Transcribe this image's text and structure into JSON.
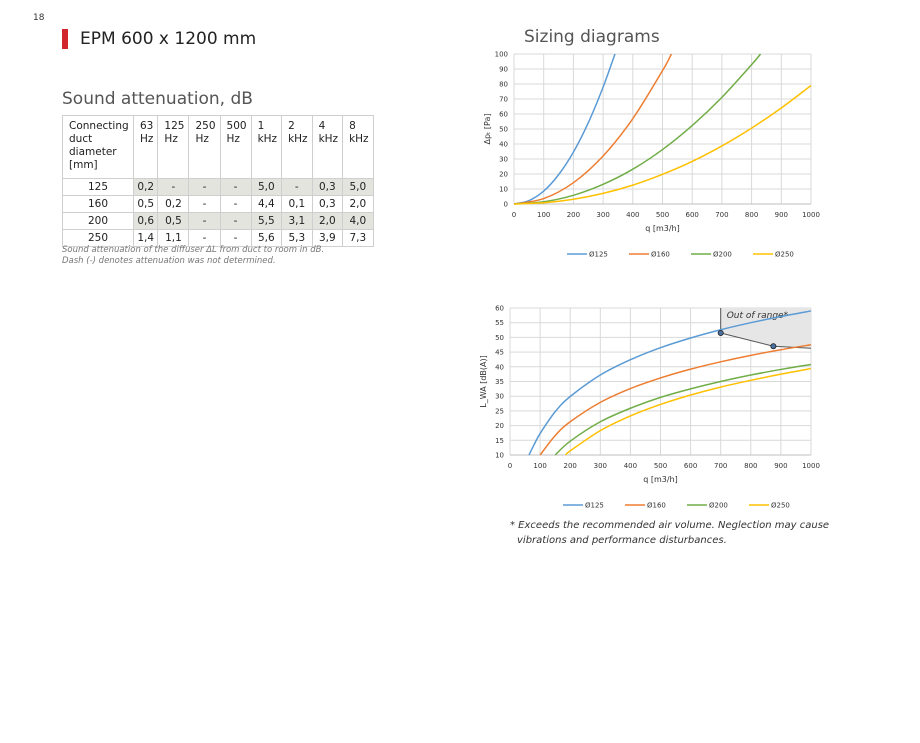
{
  "page": {
    "number": "18",
    "title": "EPM 600 x 1200 mm",
    "accent": "#d2262d"
  },
  "attenuation": {
    "title": "Sound attenuation, dB",
    "header": {
      "first": [
        "Connecting",
        "duct",
        "diameter",
        "[mm]"
      ],
      "freqs": [
        [
          "63",
          "Hz"
        ],
        [
          "125",
          "Hz"
        ],
        [
          "250",
          "Hz"
        ],
        [
          "500",
          "Hz"
        ],
        [
          "1",
          "kHz"
        ],
        [
          "2",
          "kHz"
        ],
        [
          "4",
          "kHz"
        ],
        [
          "8",
          "kHz"
        ]
      ]
    },
    "rows": [
      {
        "diameter": "125",
        "values": [
          "0,2",
          "-",
          "-",
          "-",
          "5,0",
          "-",
          "0,3",
          "5,0"
        ],
        "shaded": true
      },
      {
        "diameter": "160",
        "values": [
          "0,5",
          "0,2",
          "-",
          "-",
          "4,4",
          "0,1",
          "0,3",
          "2,0"
        ],
        "shaded": false
      },
      {
        "diameter": "200",
        "values": [
          "0,6",
          "0,5",
          "-",
          "-",
          "5,5",
          "3,1",
          "2,0",
          "4,0"
        ],
        "shaded": true
      },
      {
        "diameter": "250",
        "values": [
          "1,4",
          "1,1",
          "-",
          "-",
          "5,6",
          "5,3",
          "3,9",
          "7,3"
        ],
        "shaded": false
      }
    ],
    "note": [
      "Sound attenuation of the diffuser ΔL from duct to room in dB.",
      "Dash (-) denotes attenuation was not determined."
    ]
  },
  "sizing": {
    "title": "Sizing diagrams"
  },
  "footnote": [
    "* Exceeds the recommended air volume. Neglection may cause",
    "vibrations and performance disturbances."
  ],
  "chart_data": [
    {
      "type": "line",
      "title": "",
      "xlabel": "q [m3/h]",
      "ylabel": "Δpₜ [Pa]",
      "xlim": [
        0,
        1000
      ],
      "ylim": [
        0,
        100
      ],
      "xticks": [
        0,
        100,
        200,
        300,
        400,
        500,
        600,
        700,
        800,
        900,
        1000
      ],
      "yticks": [
        0,
        10,
        20,
        30,
        40,
        50,
        60,
        70,
        80,
        90,
        100
      ],
      "grid": true,
      "legend_position": "bottom",
      "series": [
        {
          "name": "Ø125",
          "color": "#5b9bd5",
          "x": [
            0,
            50,
            100,
            150,
            200,
            250,
            300,
            340
          ],
          "y": [
            0,
            2.2,
            8.6,
            19.5,
            34.6,
            54.1,
            77.9,
            100
          ]
        },
        {
          "name": "Ø160",
          "color": "#ed7d31",
          "x": [
            0,
            100,
            200,
            300,
            400,
            500,
            530
          ],
          "y": [
            0,
            3.6,
            14.2,
            32,
            56.9,
            88.9,
            100
          ]
        },
        {
          "name": "Ø200",
          "color": "#70ad47",
          "x": [
            0,
            100,
            200,
            300,
            400,
            500,
            600,
            700,
            800,
            830
          ],
          "y": [
            0,
            1.5,
            5.8,
            13.1,
            23.2,
            36.3,
            52.3,
            71.1,
            92.9,
            100
          ]
        },
        {
          "name": "Ø250",
          "color": "#ffc000",
          "x": [
            0,
            100,
            200,
            300,
            400,
            500,
            600,
            700,
            800,
            900,
            1000
          ],
          "y": [
            0,
            0.8,
            3.2,
            7.1,
            12.6,
            19.8,
            28.4,
            38.7,
            50.6,
            64,
            79
          ]
        }
      ]
    },
    {
      "type": "line",
      "title": "",
      "xlabel": "q [m3/h]",
      "ylabel": "L_WA [dB(A)]",
      "xlim": [
        0,
        1000
      ],
      "ylim": [
        10,
        60
      ],
      "xticks": [
        0,
        100,
        200,
        300,
        400,
        500,
        600,
        700,
        800,
        900,
        1000
      ],
      "yticks": [
        10,
        15,
        20,
        25,
        30,
        35,
        40,
        45,
        50,
        55,
        60
      ],
      "grid": true,
      "legend_position": "bottom",
      "annotation": {
        "text": "Out of range*",
        "x_from": 700,
        "x_to": 1000
      },
      "markers": [
        {
          "x": 700,
          "y": 51.5
        },
        {
          "x": 875,
          "y": 47
        }
      ],
      "series": [
        {
          "name": "Ø125",
          "color": "#5b9bd5",
          "x": [
            63,
            80,
            100,
            150,
            200,
            300,
            400,
            500,
            600,
            700,
            800,
            900,
            1000
          ],
          "y": [
            10,
            13.5,
            17.3,
            24.7,
            29.9,
            37.2,
            42.4,
            46.5,
            49.8,
            52.6,
            55,
            57.1,
            59
          ]
        },
        {
          "name": "Ø160",
          "color": "#ed7d31",
          "x": [
            100,
            150,
            200,
            300,
            400,
            500,
            600,
            700,
            800,
            900,
            1000
          ],
          "y": [
            10,
            16.6,
            21.3,
            27.9,
            32.6,
            36.2,
            39.2,
            41.7,
            43.9,
            45.8,
            47.5
          ]
        },
        {
          "name": "Ø200",
          "color": "#70ad47",
          "x": [
            150,
            200,
            300,
            400,
            500,
            600,
            700,
            800,
            900,
            1000
          ],
          "y": [
            10,
            14.7,
            21.3,
            25.9,
            29.6,
            32.5,
            35,
            37.2,
            39.1,
            40.8
          ]
        },
        {
          "name": "Ø250",
          "color": "#ffc000",
          "x": [
            185,
            200,
            300,
            400,
            500,
            600,
            700,
            800,
            900,
            1000
          ],
          "y": [
            10,
            11.4,
            18.3,
            23.3,
            27.2,
            30.4,
            33.1,
            35.4,
            37.5,
            39.4
          ]
        }
      ]
    }
  ]
}
